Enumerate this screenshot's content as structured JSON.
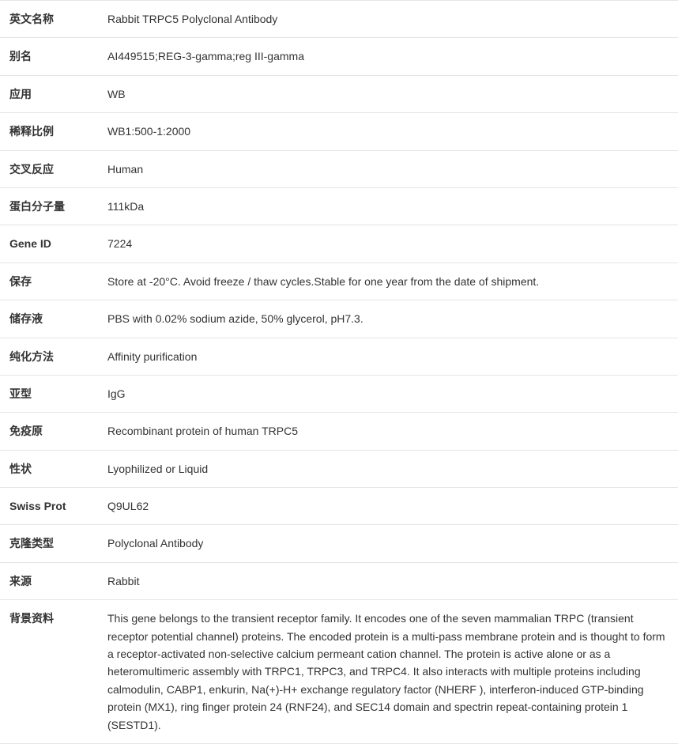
{
  "table": {
    "border_color": "#e5e5e5",
    "text_color": "#333333",
    "font_size": 14,
    "label_weight": 700,
    "value_weight": 400,
    "label_width": 118,
    "row_padding_v": 12
  },
  "rows": [
    {
      "label": "英文名称",
      "value": "Rabbit TRPC5 Polyclonal Antibody"
    },
    {
      "label": "别名",
      "value": "AI449515;REG-3-gamma;reg III-gamma"
    },
    {
      "label": "应用",
      "value": "WB"
    },
    {
      "label": "稀释比例",
      "value": "WB1:500-1:2000"
    },
    {
      "label": "交叉反应",
      "value": "Human"
    },
    {
      "label": "蛋白分子量",
      "value": "111kDa"
    },
    {
      "label": "Gene ID",
      "value": "7224"
    },
    {
      "label": "保存",
      "value": "Store at -20°C. Avoid freeze / thaw cycles.Stable for one year from the date of shipment."
    },
    {
      "label": "储存液",
      "value": "PBS with 0.02% sodium azide, 50% glycerol, pH7.3."
    },
    {
      "label": "纯化方法",
      "value": "Affinity purification"
    },
    {
      "label": "亚型",
      "value": "IgG"
    },
    {
      "label": "免疫原",
      "value": "Recombinant protein of human TRPC5"
    },
    {
      "label": "性状",
      "value": "Lyophilized or Liquid"
    },
    {
      "label": "Swiss Prot",
      "value": "Q9UL62"
    },
    {
      "label": "克隆类型",
      "value": "Polyclonal Antibody"
    },
    {
      "label": "来源",
      "value": "Rabbit"
    },
    {
      "label": "背景资料",
      "value": "This gene belongs to the transient receptor family. It encodes one of the seven mammalian TRPC (transient receptor potential channel) proteins. The encoded protein is a multi-pass membrane protein and is thought to form a receptor-activated non-selective calcium permeant cation channel. The protein is active alone or as a heteromultimeric assembly with TRPC1, TRPC3, and TRPC4. It also interacts with multiple proteins including calmodulin, CABP1, enkurin, Na(+)-H+ exchange regulatory factor (NHERF ), interferon-induced GTP-binding protein (MX1), ring finger protein 24 (RNF24), and SEC14 domain and spectrin repeat-containing protein 1 (SESTD1)."
    }
  ]
}
